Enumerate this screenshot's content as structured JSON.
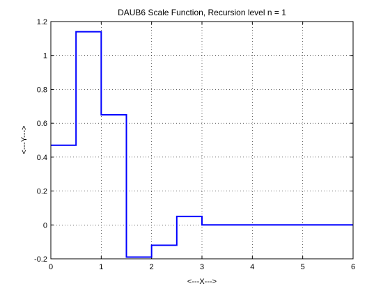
{
  "chart_data": {
    "type": "line",
    "title": "DAUB6 Scale Function, Recursion level n = 1",
    "xlabel": "<---X--->",
    "ylabel": "<---Y--->",
    "xlim": [
      0,
      6
    ],
    "ylim": [
      -0.2,
      1.2
    ],
    "xticks": [
      0,
      1,
      2,
      3,
      4,
      5,
      6
    ],
    "xtick_labels": [
      "0",
      "1",
      "2",
      "3",
      "4",
      "5",
      "6"
    ],
    "yticks": [
      -0.2,
      0,
      0.2,
      0.4,
      0.6,
      0.8,
      1,
      1.2
    ],
    "ytick_labels": [
      "-0.2",
      "0",
      "0.2",
      "0.4",
      "0.6",
      "0.8",
      "1",
      "1.2"
    ],
    "grid": true,
    "line_color": "#0000ff",
    "series": [
      {
        "x": [
          0,
          0.5,
          0.5,
          1,
          1,
          1.5,
          1.5,
          2,
          2,
          2.5,
          2.5,
          3,
          3,
          6
        ],
        "y": [
          0.47,
          0.47,
          1.14,
          1.14,
          0.65,
          0.65,
          -0.19,
          -0.19,
          -0.12,
          -0.12,
          0.05,
          0.05,
          0,
          0
        ]
      }
    ]
  }
}
